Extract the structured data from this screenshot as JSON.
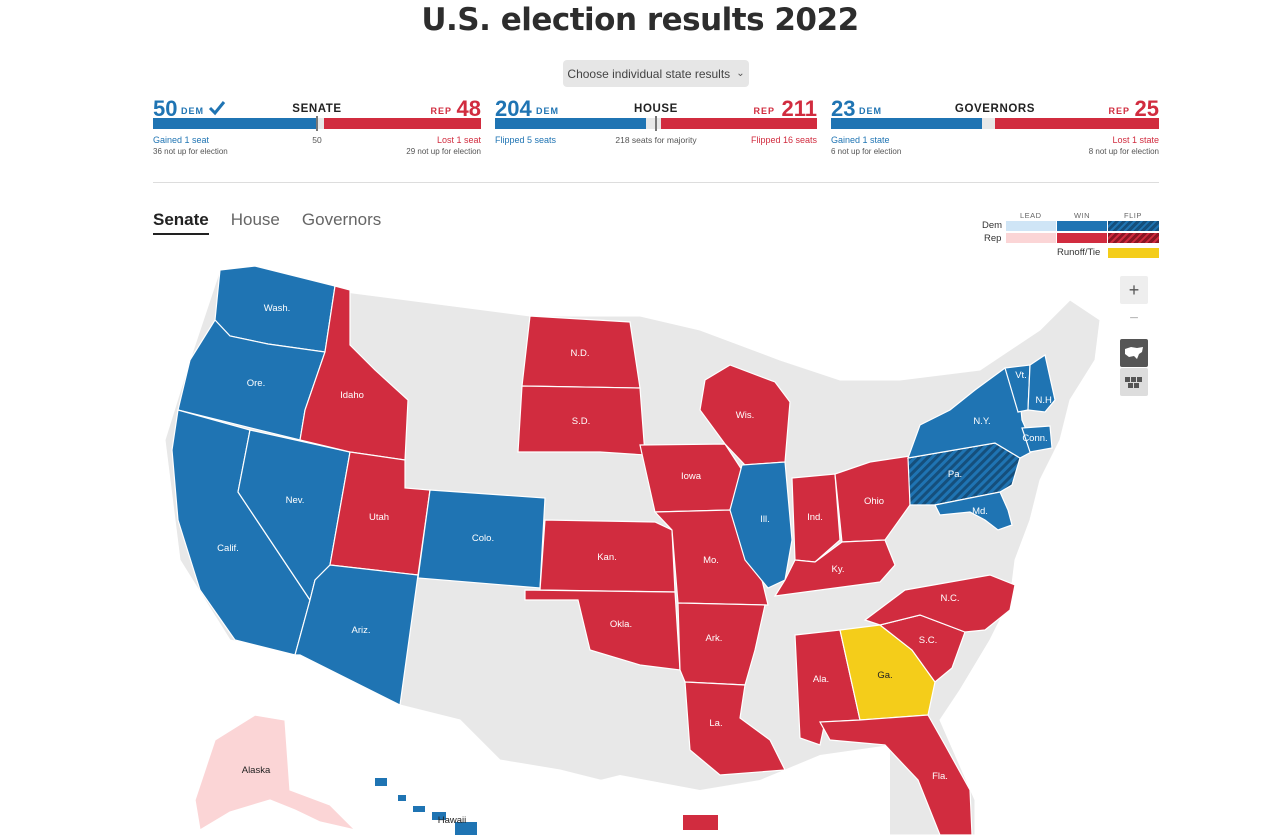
{
  "page": {
    "title": "U.S. election results 2022"
  },
  "state_select": {
    "label": "Choose individual state results"
  },
  "colors": {
    "dem_win": "#1f74b3",
    "rep_win": "#d12c3f",
    "dem_lead": "#cfe5f6",
    "rep_lead": "#fbd5d6",
    "runoff": "#f4cd1a",
    "not_up": "#e8e8e8",
    "flip_dem": "#154f7c"
  },
  "summaries": [
    {
      "chamber": "SENATE",
      "dem_count": "50",
      "dem_label": "DEM",
      "dem_check": true,
      "rep_count": "48",
      "rep_label": "REP",
      "dem_note": "Gained 1 seat",
      "dem_sub": "36 not up for election",
      "center_note": "50",
      "rep_note": "Lost 1 seat",
      "rep_sub": "29 not up for election",
      "dem_share": 0.5,
      "rep_share": 0.48
    },
    {
      "chamber": "HOUSE",
      "dem_count": "204",
      "dem_label": "DEM",
      "rep_count": "211",
      "rep_label": "REP",
      "dem_note": "Flipped 5 seats",
      "dem_sub": "",
      "center_note": "218 seats for majority",
      "rep_note": "Flipped 16 seats",
      "rep_sub": "",
      "dem_share": 0.469,
      "rep_share": 0.485
    },
    {
      "chamber": "GOVERNORS",
      "dem_count": "23",
      "dem_label": "DEM",
      "rep_count": "25",
      "rep_label": "REP",
      "dem_note": "Gained 1 state",
      "dem_sub": "6 not up for election",
      "center_note": "",
      "rep_note": "Lost 1 state",
      "rep_sub": "8 not up for election",
      "dem_share": 0.46,
      "rep_share": 0.5
    }
  ],
  "tabs": [
    "Senate",
    "House",
    "Governors"
  ],
  "active_tab": "Senate",
  "legend": {
    "columns": [
      "LEAD",
      "WIN",
      "FLIP"
    ],
    "rows": [
      "Dem",
      "Rep"
    ],
    "runoff_label": "Runoff/Tie"
  },
  "map_controls": {
    "zoom_in": "+",
    "zoom_out": "−",
    "icons": [
      "us-map-icon",
      "states-grid-icon"
    ]
  },
  "states": [
    {
      "label": "Wash.",
      "result": "dem_win"
    },
    {
      "label": "Ore.",
      "result": "dem_win"
    },
    {
      "label": "Calif.",
      "result": "dem_win"
    },
    {
      "label": "Nev.",
      "result": "dem_win"
    },
    {
      "label": "Idaho",
      "result": "rep_win"
    },
    {
      "label": "Utah",
      "result": "rep_win"
    },
    {
      "label": "Ariz.",
      "result": "dem_win"
    },
    {
      "label": "Colo.",
      "result": "dem_win"
    },
    {
      "label": "N.D.",
      "result": "rep_win"
    },
    {
      "label": "S.D.",
      "result": "rep_win"
    },
    {
      "label": "Kan.",
      "result": "rep_win"
    },
    {
      "label": "Okla.",
      "result": "rep_win"
    },
    {
      "label": "Iowa",
      "result": "rep_win"
    },
    {
      "label": "Mo.",
      "result": "rep_win"
    },
    {
      "label": "Ark.",
      "result": "rep_win"
    },
    {
      "label": "La.",
      "result": "rep_win"
    },
    {
      "label": "Wis.",
      "result": "rep_win"
    },
    {
      "label": "Ill.",
      "result": "dem_win"
    },
    {
      "label": "Ind.",
      "result": "rep_win"
    },
    {
      "label": "Ohio",
      "result": "rep_win"
    },
    {
      "label": "Ky.",
      "result": "rep_win"
    },
    {
      "label": "Ala.",
      "result": "rep_win"
    },
    {
      "label": "Ga.",
      "result": "runoff"
    },
    {
      "label": "Fla.",
      "result": "rep_win"
    },
    {
      "label": "S.C.",
      "result": "rep_win"
    },
    {
      "label": "N.C.",
      "result": "rep_win"
    },
    {
      "label": "Pa.",
      "result": "flip_dem"
    },
    {
      "label": "Md.",
      "result": "dem_win"
    },
    {
      "label": "N.Y.",
      "result": "dem_win"
    },
    {
      "label": "Vt.",
      "result": "dem_win"
    },
    {
      "label": "N.H.",
      "result": "dem_win"
    },
    {
      "label": "Conn.",
      "result": "dem_win"
    },
    {
      "label": "Alaska",
      "result": "rep_lead"
    },
    {
      "label": "Hawaii",
      "result": "dem_win"
    }
  ]
}
